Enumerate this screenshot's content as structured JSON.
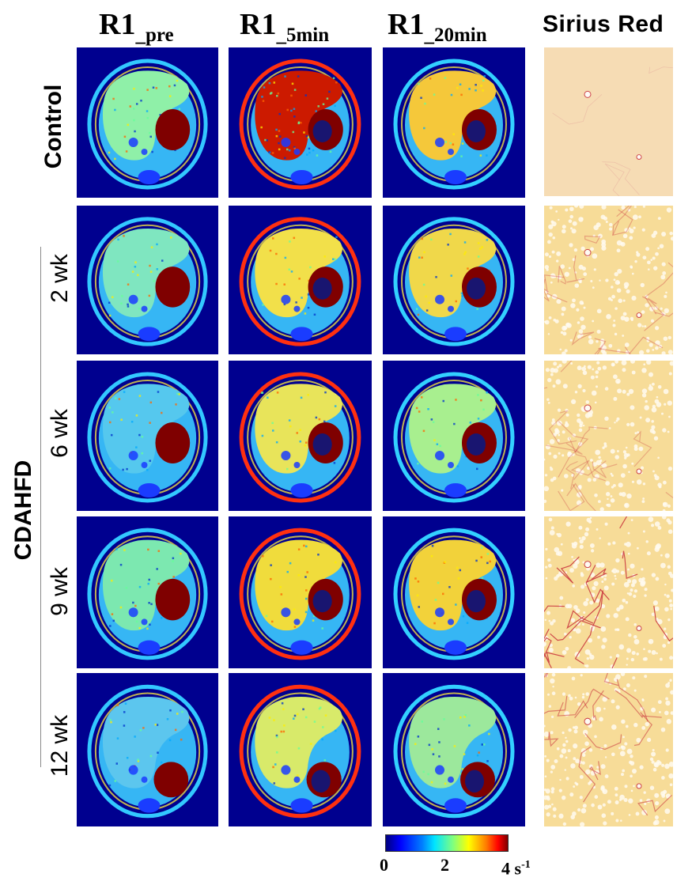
{
  "columns": {
    "pre": {
      "main": "R1",
      "sub": "_pre"
    },
    "min5": {
      "main": "R1",
      "sub": "_5min"
    },
    "min20": {
      "main": "R1",
      "sub": "_20min"
    },
    "sirius": "Sirius Red"
  },
  "rows": {
    "control": "Control",
    "group": "CDAHFD",
    "wk2": "2 wk",
    "wk6": "6 wk",
    "wk9": "9 wk",
    "wk12": "12 wk"
  },
  "colorbar": {
    "tick0": "0",
    "tick2": "2",
    "tick4": "4",
    "unit": "s",
    "unit_exp": "-1"
  },
  "colors": {
    "background_blue": "#00008f",
    "pre_liver": "#8ff0a8",
    "min5_control_liver": "#cc1a00",
    "enhanced_liver": "#f2df3a",
    "stomach": "#7f0000",
    "sirius_tissue": "#f6dcb4",
    "collagen_red": "#c8323c"
  }
}
